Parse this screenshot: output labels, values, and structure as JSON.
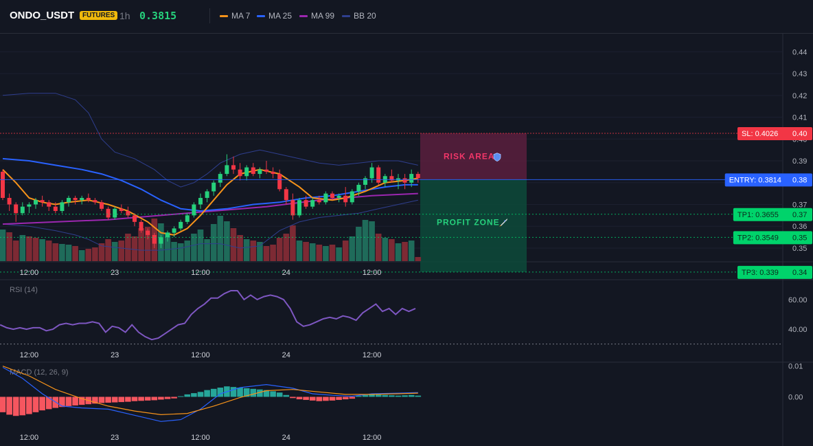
{
  "header": {
    "symbol": "ONDO_USDT",
    "badge": "FUTURES",
    "timeframe": "1h",
    "price": "0.3815",
    "indicators": [
      {
        "label": "MA 7",
        "color": "#f7931a"
      },
      {
        "label": "MA 25",
        "color": "#2962ff"
      },
      {
        "label": "MA 99",
        "color": "#9c27b0"
      },
      {
        "label": "BB 20",
        "color": "#2f3f8f"
      }
    ]
  },
  "colors": {
    "up": "#26d07c",
    "down": "#f23645",
    "vol_up": "#1f6b5a",
    "vol_down": "#7d2a34",
    "sl": "#f23645",
    "entry": "#2962ff",
    "tp": "#00d36b",
    "rsi": "#7e57c2",
    "macd": "#2962ff",
    "signal": "#f7931a",
    "hist_up": "#26a69a",
    "hist_down": "#f6565f"
  },
  "chart_data": [
    {
      "type": "candlestick",
      "pane": "price",
      "x_ticks": [
        "12:00",
        "23",
        "12:00",
        "24",
        "12:00"
      ],
      "y_ticks": [
        "0.44",
        "0.43",
        "0.42",
        "0.41",
        "0.40",
        "0.39",
        "0.38",
        "0.37",
        "0.36",
        "0.35"
      ],
      "y_range": [
        0.344,
        0.448
      ],
      "candles_ohlc": [
        [
          0.385,
          0.386,
          0.372,
          0.373
        ],
        [
          0.373,
          0.375,
          0.367,
          0.37
        ],
        [
          0.37,
          0.371,
          0.362,
          0.366
        ],
        [
          0.366,
          0.371,
          0.365,
          0.369
        ],
        [
          0.369,
          0.371,
          0.366,
          0.37
        ],
        [
          0.37,
          0.373,
          0.368,
          0.372
        ],
        [
          0.372,
          0.374,
          0.369,
          0.371
        ],
        [
          0.371,
          0.372,
          0.367,
          0.369
        ],
        [
          0.369,
          0.371,
          0.366,
          0.367
        ],
        [
          0.367,
          0.372,
          0.366,
          0.371
        ],
        [
          0.371,
          0.374,
          0.369,
          0.373
        ],
        [
          0.373,
          0.374,
          0.37,
          0.372
        ],
        [
          0.372,
          0.374,
          0.37,
          0.373
        ],
        [
          0.373,
          0.375,
          0.371,
          0.372
        ],
        [
          0.372,
          0.373,
          0.37,
          0.371
        ],
        [
          0.371,
          0.372,
          0.367,
          0.368
        ],
        [
          0.368,
          0.369,
          0.363,
          0.364
        ],
        [
          0.364,
          0.369,
          0.363,
          0.368
        ],
        [
          0.368,
          0.37,
          0.366,
          0.367
        ],
        [
          0.367,
          0.369,
          0.364,
          0.365
        ],
        [
          0.365,
          0.366,
          0.36,
          0.362
        ],
        [
          0.362,
          0.363,
          0.357,
          0.358
        ],
        [
          0.358,
          0.359,
          0.354,
          0.356
        ],
        [
          0.356,
          0.357,
          0.35,
          0.352
        ],
        [
          0.352,
          0.356,
          0.35,
          0.355
        ],
        [
          0.355,
          0.358,
          0.353,
          0.357
        ],
        [
          0.357,
          0.36,
          0.355,
          0.359
        ],
        [
          0.359,
          0.363,
          0.358,
          0.362
        ],
        [
          0.362,
          0.366,
          0.361,
          0.365
        ],
        [
          0.365,
          0.371,
          0.364,
          0.37
        ],
        [
          0.37,
          0.375,
          0.368,
          0.373
        ],
        [
          0.373,
          0.377,
          0.371,
          0.376
        ],
        [
          0.376,
          0.381,
          0.374,
          0.38
        ],
        [
          0.38,
          0.385,
          0.378,
          0.384
        ],
        [
          0.384,
          0.393,
          0.383,
          0.388
        ],
        [
          0.388,
          0.392,
          0.384,
          0.386
        ],
        [
          0.386,
          0.389,
          0.381,
          0.383
        ],
        [
          0.383,
          0.388,
          0.381,
          0.387
        ],
        [
          0.387,
          0.389,
          0.383,
          0.384
        ],
        [
          0.384,
          0.387,
          0.382,
          0.386
        ],
        [
          0.386,
          0.39,
          0.384,
          0.385
        ],
        [
          0.385,
          0.387,
          0.382,
          0.384
        ],
        [
          0.384,
          0.386,
          0.376,
          0.377
        ],
        [
          0.377,
          0.378,
          0.37,
          0.372
        ],
        [
          0.372,
          0.375,
          0.363,
          0.365
        ],
        [
          0.365,
          0.373,
          0.364,
          0.372
        ],
        [
          0.372,
          0.374,
          0.368,
          0.369
        ],
        [
          0.369,
          0.373,
          0.368,
          0.372
        ],
        [
          0.372,
          0.374,
          0.37,
          0.371
        ],
        [
          0.371,
          0.376,
          0.37,
          0.375
        ],
        [
          0.375,
          0.376,
          0.372,
          0.373
        ],
        [
          0.373,
          0.375,
          0.371,
          0.374
        ],
        [
          0.374,
          0.378,
          0.369,
          0.371
        ],
        [
          0.371,
          0.377,
          0.37,
          0.376
        ],
        [
          0.376,
          0.38,
          0.374,
          0.379
        ],
        [
          0.379,
          0.383,
          0.377,
          0.382
        ],
        [
          0.382,
          0.389,
          0.38,
          0.387
        ],
        [
          0.387,
          0.388,
          0.379,
          0.38
        ],
        [
          0.38,
          0.384,
          0.378,
          0.383
        ],
        [
          0.383,
          0.386,
          0.38,
          0.381
        ],
        [
          0.381,
          0.384,
          0.377,
          0.382
        ],
        [
          0.382,
          0.384,
          0.377,
          0.38
        ],
        [
          0.38,
          0.386,
          0.378,
          0.384
        ],
        [
          0.384,
          0.385,
          0.38,
          0.382
        ]
      ],
      "volume_up": [
        1,
        0,
        0,
        1,
        0,
        0,
        1,
        0,
        0,
        1,
        1,
        0,
        1,
        0,
        0,
        0,
        0,
        1,
        0,
        0,
        0,
        0,
        0,
        0,
        1,
        1,
        1,
        1,
        1,
        1,
        1,
        1,
        1,
        1,
        1,
        0,
        0,
        1,
        0,
        1,
        0,
        0,
        0,
        0,
        0,
        1,
        0,
        1,
        0,
        1,
        0,
        1,
        0,
        1,
        1,
        1,
        1,
        0,
        1,
        0,
        1,
        0,
        1,
        0
      ],
      "volume": [
        46,
        42,
        30,
        38,
        36,
        34,
        32,
        30,
        26,
        25,
        24,
        22,
        16,
        18,
        20,
        26,
        32,
        28,
        30,
        40,
        36,
        48,
        50,
        62,
        55,
        42,
        28,
        26,
        30,
        40,
        46,
        32,
        54,
        66,
        58,
        48,
        38,
        32,
        30,
        28,
        22,
        24,
        34,
        40,
        52,
        30,
        28,
        26,
        24,
        22,
        24,
        20,
        30,
        36,
        50,
        60,
        58,
        40,
        34,
        32,
        26,
        28,
        30,
        6
      ],
      "volume_y_range": [
        0,
        70
      ],
      "ma7": [
        [
          0,
          0.386
        ],
        [
          2,
          0.38
        ],
        [
          4,
          0.373
        ],
        [
          6,
          0.371
        ],
        [
          8,
          0.37
        ],
        [
          10,
          0.371
        ],
        [
          13,
          0.372
        ],
        [
          16,
          0.37
        ],
        [
          19,
          0.367
        ],
        [
          22,
          0.362
        ],
        [
          24,
          0.357
        ],
        [
          26,
          0.356
        ],
        [
          28,
          0.359
        ],
        [
          30,
          0.365
        ],
        [
          32,
          0.372
        ],
        [
          34,
          0.379
        ],
        [
          36,
          0.384
        ],
        [
          39,
          0.386
        ],
        [
          42,
          0.384
        ],
        [
          45,
          0.378
        ],
        [
          47,
          0.373
        ],
        [
          50,
          0.372
        ],
        [
          52,
          0.373
        ],
        [
          55,
          0.376
        ],
        [
          58,
          0.38
        ],
        [
          61,
          0.381
        ],
        [
          63,
          0.382
        ]
      ],
      "ma25": [
        [
          0,
          0.391
        ],
        [
          4,
          0.39
        ],
        [
          8,
          0.388
        ],
        [
          12,
          0.386
        ],
        [
          15,
          0.384
        ],
        [
          18,
          0.381
        ],
        [
          21,
          0.377
        ],
        [
          24,
          0.372
        ],
        [
          27,
          0.368
        ],
        [
          30,
          0.367
        ],
        [
          34,
          0.368
        ],
        [
          38,
          0.37
        ],
        [
          42,
          0.371
        ],
        [
          46,
          0.373
        ],
        [
          50,
          0.374
        ],
        [
          54,
          0.376
        ],
        [
          58,
          0.378
        ],
        [
          61,
          0.379
        ],
        [
          63,
          0.379
        ]
      ],
      "ma99": [
        [
          0,
          0.361
        ],
        [
          8,
          0.362
        ],
        [
          16,
          0.363
        ],
        [
          24,
          0.365
        ],
        [
          32,
          0.367
        ],
        [
          40,
          0.369
        ],
        [
          48,
          0.372
        ],
        [
          56,
          0.374
        ],
        [
          63,
          0.375
        ]
      ],
      "bb_upper": [
        [
          0,
          0.42
        ],
        [
          4,
          0.421
        ],
        [
          8,
          0.421
        ],
        [
          11,
          0.418
        ],
        [
          13,
          0.412
        ],
        [
          15,
          0.4
        ],
        [
          17,
          0.394
        ],
        [
          20,
          0.391
        ],
        [
          23,
          0.386
        ],
        [
          25,
          0.381
        ],
        [
          27,
          0.378
        ],
        [
          29,
          0.38
        ],
        [
          31,
          0.384
        ],
        [
          33,
          0.389
        ],
        [
          36,
          0.393
        ],
        [
          39,
          0.395
        ],
        [
          42,
          0.393
        ],
        [
          45,
          0.391
        ],
        [
          48,
          0.389
        ],
        [
          51,
          0.388
        ],
        [
          54,
          0.389
        ],
        [
          57,
          0.39
        ],
        [
          60,
          0.39
        ],
        [
          63,
          0.388
        ]
      ],
      "bb_lower": [
        [
          0,
          0.361
        ],
        [
          4,
          0.36
        ],
        [
          8,
          0.358
        ],
        [
          11,
          0.356
        ],
        [
          13,
          0.354
        ],
        [
          15,
          0.351
        ],
        [
          18,
          0.35
        ],
        [
          21,
          0.349
        ],
        [
          24,
          0.349
        ],
        [
          27,
          0.35
        ],
        [
          30,
          0.352
        ],
        [
          33,
          0.352
        ],
        [
          36,
          0.35
        ],
        [
          39,
          0.351
        ],
        [
          42,
          0.358
        ],
        [
          45,
          0.362
        ],
        [
          48,
          0.364
        ],
        [
          51,
          0.365
        ],
        [
          54,
          0.366
        ],
        [
          57,
          0.368
        ],
        [
          60,
          0.37
        ],
        [
          63,
          0.372
        ]
      ]
    },
    {
      "type": "line",
      "pane": "rsi",
      "title": "RSI (14)",
      "y_ticks": [
        "60.00",
        "40.00"
      ],
      "y_range": [
        28,
        72
      ],
      "values": [
        43,
        41,
        40,
        41,
        40,
        41,
        41,
        39,
        40,
        43,
        44,
        43,
        44,
        44,
        45,
        44,
        38,
        42,
        41,
        38,
        43,
        38,
        35,
        33,
        34,
        37,
        40,
        43,
        44,
        50,
        54,
        57,
        61,
        61,
        64,
        66,
        66,
        60,
        63,
        60,
        62,
        63,
        62,
        60,
        54,
        45,
        42,
        43,
        45,
        47,
        48,
        47,
        49,
        48,
        46,
        51,
        54,
        57,
        52,
        54,
        50,
        54,
        52,
        54
      ]
    },
    {
      "type": "bar+line",
      "pane": "macd",
      "title": "MACD (12, 26, 9)",
      "y_ticks": [
        "0.01",
        "0.00"
      ],
      "y_range": [
        -0.0095,
        0.0106
      ],
      "histogram": [
        -0.005,
        -0.0058,
        -0.0062,
        -0.006,
        -0.0056,
        -0.005,
        -0.0044,
        -0.004,
        -0.0036,
        -0.0033,
        -0.003,
        -0.0028,
        -0.0026,
        -0.0024,
        -0.0022,
        -0.002,
        -0.0019,
        -0.0018,
        -0.0017,
        -0.0016,
        -0.0014,
        -0.0013,
        -0.0012,
        -0.0011,
        -0.0009,
        -0.0007,
        -0.0005,
        0.0002,
        0.0008,
        0.0012,
        0.0016,
        0.0022,
        0.0026,
        0.003,
        0.0034,
        0.0032,
        0.003,
        0.0028,
        0.0026,
        0.0024,
        0.0022,
        0.0018,
        0.0014,
        0.0006,
        -0.0004,
        -0.0008,
        -0.001,
        -0.0012,
        -0.0014,
        -0.0013,
        -0.0012,
        -0.001,
        -0.0008,
        -0.0006,
        0.0003,
        0.0006,
        0.0008,
        0.0007,
        0.0006,
        0.0005,
        0.0004,
        0.0005,
        0.0006,
        0.0004
      ],
      "macd": [
        [
          0,
          0.0096
        ],
        [
          3,
          0.006
        ],
        [
          6,
          0.001
        ],
        [
          9,
          -0.003
        ],
        [
          12,
          -0.0036
        ],
        [
          16,
          -0.004
        ],
        [
          20,
          -0.006
        ],
        [
          24,
          -0.008
        ],
        [
          27,
          -0.0074
        ],
        [
          30,
          -0.004
        ],
        [
          33,
          0.001
        ],
        [
          36,
          0.003
        ],
        [
          40,
          0.004
        ],
        [
          44,
          0.0028
        ],
        [
          47,
          0.001
        ],
        [
          50,
          0.0005
        ],
        [
          53,
          0.0002
        ],
        [
          56,
          0.001
        ],
        [
          60,
          0.0012
        ],
        [
          63,
          0.0014
        ]
      ],
      "signal": [
        [
          0,
          0.01
        ],
        [
          4,
          0.0068
        ],
        [
          8,
          0.0024
        ],
        [
          12,
          -0.0006
        ],
        [
          16,
          -0.003
        ],
        [
          20,
          -0.0046
        ],
        [
          24,
          -0.0058
        ],
        [
          28,
          -0.0054
        ],
        [
          32,
          -0.003
        ],
        [
          36,
          -0.0002
        ],
        [
          40,
          0.002
        ],
        [
          44,
          0.0024
        ],
        [
          48,
          0.0016
        ],
        [
          52,
          0.0008
        ],
        [
          56,
          0.0008
        ],
        [
          60,
          0.001
        ],
        [
          63,
          0.0012
        ]
      ]
    }
  ],
  "levels": {
    "sl": {
      "label": "SL: 0.4026",
      "axis": "0.40",
      "value": 0.4026
    },
    "entry": {
      "label": "ENTRY: 0.3814",
      "axis": "0.38",
      "value": 0.3814
    },
    "tp1": {
      "label": "TP1: 0.3655",
      "axis": "0.37",
      "value": 0.3655
    },
    "tp2": {
      "label": "TP2: 0.3549",
      "axis": "0.35",
      "value": 0.3549
    },
    "tp3": {
      "label": "TP3: 0.339",
      "axis": "0.34",
      "value": 0.339
    }
  },
  "zones": {
    "risk_label": "RISK AREA",
    "profit_label": "PROFIT ZONE",
    "risk_icon": "shield-icon",
    "profit_icon": "rocket-icon"
  }
}
